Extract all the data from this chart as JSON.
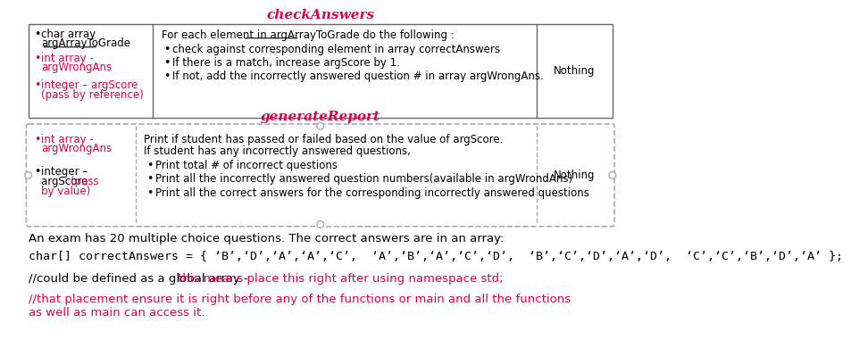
{
  "check_answers_title": "checkAnswers",
  "check_answers_title_color": "#e0004d",
  "generate_report_title": "generateReport",
  "generate_report_title_color": "#e0004d",
  "check_answers_right_col": "Nothing",
  "generate_report_right_col": "Nothing",
  "ca_left_items": [
    {
      "lines": [
        "char array",
        "argArrayToGrade"
      ],
      "color": "black",
      "underline": [
        false,
        true
      ]
    },
    {
      "lines": [
        "int array -",
        "argWrongAns"
      ],
      "color": "#e0004d",
      "underline": [
        false,
        false
      ]
    },
    {
      "lines": [
        "integer – argScore",
        "(pass by reference)"
      ],
      "color": "#e0004d",
      "underline": [
        false,
        false
      ]
    }
  ],
  "ca_mid_line0": "For each element in argArrayToGrade do the following :",
  "ca_mid_underline_word": "argArrayToGrade",
  "ca_mid_bullets": [
    "check against corresponding element in array correctAnswers",
    "If there is a match, increase argScore by 1.",
    "If not, add the incorrectly answered question # in array argWrongAns."
  ],
  "gr_left_item1": [
    "int array -",
    "argWrongAns"
  ],
  "gr_left_item1_color": "#e0004d",
  "gr_left_item2_prefix": [
    "integer –",
    "argScore "
  ],
  "gr_left_item2_prefix_color": "black",
  "gr_left_item2_suffix": [
    "(pass",
    "by value)"
  ],
  "gr_left_item2_suffix_color": "#e0004d",
  "gr_mid_line0": "Print if student has passed or failed based on the value of argScore.",
  "gr_mid_line1": "If student has any incorrectly answered questions,",
  "gr_mid_bullets": [
    "Print total # of incorrect questions",
    "Print all the incorrectly answered question numbers(available in argWrondAns)",
    "Print all the correct answers for the corresponding incorrectly answered questions"
  ],
  "body_line0": "An exam has 20 multiple choice questions. The correct answers are in an array:",
  "body_line1": "char[] correctAnswers = { ‘B’,‘D’,‘A’,‘A’,‘C’,  ‘A’,‘B’,‘A’,‘C’,‘D’,  ‘B’,‘C’,‘D’,‘A’,‘D’,  ‘C’,‘C’,‘B’,‘D’,‘A’ };",
  "body_line2_black": "//could be defined as a global array - ",
  "body_line2_pink": "this means place this right after using namespace std;",
  "body_line3": "//that placement ensure it is right before any of the functions or main and all the functions\nas well as main can access it.",
  "background_color": "#ffffff",
  "table_border_color": "#666666",
  "dashed_border_color": "#aaaaaa",
  "pink": "#e0004d",
  "black": "#222222"
}
